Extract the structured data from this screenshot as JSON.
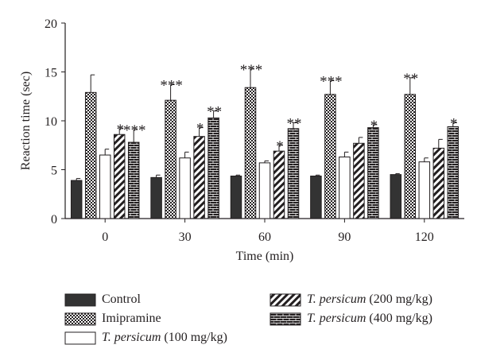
{
  "chart_data": {
    "type": "bar",
    "xlabel": "Time (min)",
    "ylabel": "Reaction time (sec)",
    "ylim": [
      0,
      20
    ],
    "yticks": [
      0,
      5,
      10,
      15,
      20
    ],
    "categories": [
      "0",
      "30",
      "60",
      "90",
      "120"
    ],
    "series": [
      {
        "name": "Control",
        "pattern": "solid",
        "values": [
          3.9,
          4.2,
          4.35,
          4.35,
          4.5
        ],
        "errors": [
          0.2,
          0.25,
          0.1,
          0.1,
          0.1
        ],
        "sig": [
          "",
          "",
          "",
          "",
          ""
        ]
      },
      {
        "name": "Imipramine",
        "pattern": "checker",
        "values": [
          12.9,
          12.1,
          13.4,
          12.7,
          12.7
        ],
        "errors": [
          1.8,
          1.6,
          1.9,
          1.4,
          1.7
        ],
        "sig": [
          "",
          "***",
          "***",
          "***",
          "**"
        ]
      },
      {
        "name": "T. persicum (100 mg/kg)",
        "label_italic": "T. persicum",
        "label_rest": " (100 mg/kg)",
        "pattern": "white",
        "values": [
          6.5,
          6.2,
          5.7,
          6.3,
          5.8
        ],
        "errors": [
          0.6,
          0.6,
          0.2,
          0.5,
          0.4
        ],
        "sig": [
          "",
          "",
          "",
          "",
          ""
        ]
      },
      {
        "name": "T. persicum (200 mg/kg)",
        "label_italic": "T. persicum",
        "label_rest": " (200 mg/kg)",
        "pattern": "hatch",
        "values": [
          8.6,
          8.4,
          6.9,
          7.7,
          7.2
        ],
        "errors": [
          0.6,
          0.9,
          0.6,
          0.6,
          0.9
        ],
        "sig": [
          "*",
          "*",
          "*",
          "",
          ""
        ]
      },
      {
        "name": "T. persicum (400 mg/kg)",
        "label_italic": "T. persicum",
        "label_rest": " (400 mg/kg)",
        "pattern": "brick",
        "values": [
          7.8,
          10.3,
          9.2,
          9.3,
          9.4
        ],
        "errors": [
          1.3,
          0.7,
          0.6,
          0.3,
          0.4
        ],
        "sig": [
          "***",
          "**",
          "**",
          "*",
          "*"
        ]
      }
    ],
    "grid": false,
    "legend_position": "bottom",
    "colors": {
      "ink": "#231f20",
      "fill_dark": "#333333"
    }
  }
}
